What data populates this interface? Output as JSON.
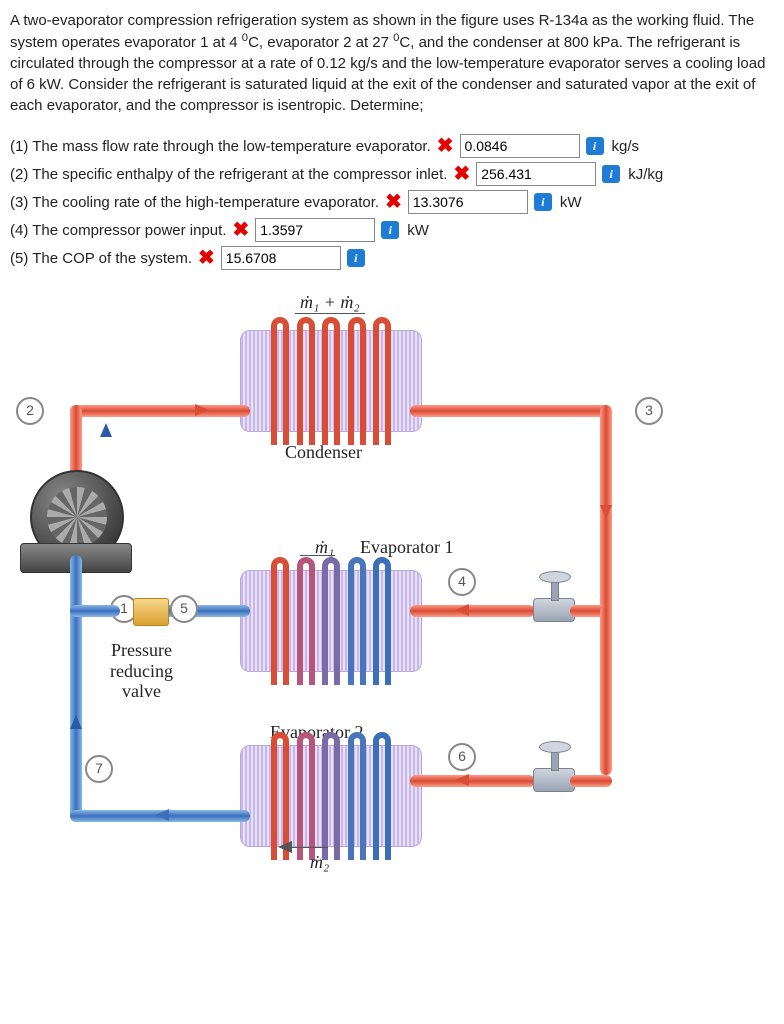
{
  "problem": {
    "text": "A two-evaporator compression refrigeration system as shown in the figure uses R-134a as the working fluid. The system operates evaporator 1 at 4 °C, evaporator 2 at 27 °C, and the condenser at 800 kPa. The refrigerant is circulated through the compressor at a rate of 0.12 kg/s and the low-temperature evaporator serves a cooling load of 6 kW. Consider the refrigerant is saturated liquid at the exit of the condenser and saturated vapor at the exit of each evaporator, and the compressor is isentropic. Determine;"
  },
  "questions": [
    {
      "num": "(1)",
      "label": "The mass flow rate through the low-temperature evaporator.",
      "value": "0.0846",
      "unit": "kg/s",
      "wrong": true
    },
    {
      "num": "(2)",
      "label": "The specific enthalpy of the refrigerant at the compressor inlet.",
      "value": "256.431",
      "unit": "kJ/kg",
      "wrong": true
    },
    {
      "num": "(3)",
      "label": "The cooling rate of the high-temperature evaporator.",
      "value": "13.3076",
      "unit": "kW",
      "wrong": true
    },
    {
      "num": "(4)",
      "label": "The compressor power input.",
      "value": "1.3597",
      "unit": "kW",
      "wrong": true
    },
    {
      "num": "(5)",
      "label": "The COP of the system.",
      "value": "15.6708",
      "unit": "",
      "wrong": true
    }
  ],
  "figure": {
    "flow_top": "ṁ₁ + ṁ₂",
    "condenser": "Condenser",
    "evap1": "Evaporator 1",
    "evap2": "Evaporator 2",
    "m1": "ṁ₁",
    "m2": "ṁ₂",
    "prv": "Pressure\nreducing\nvalve",
    "nodes": {
      "n1": "1",
      "n2": "2",
      "n3": "3",
      "n4": "4",
      "n5": "5",
      "n6": "6",
      "n7": "7"
    }
  }
}
